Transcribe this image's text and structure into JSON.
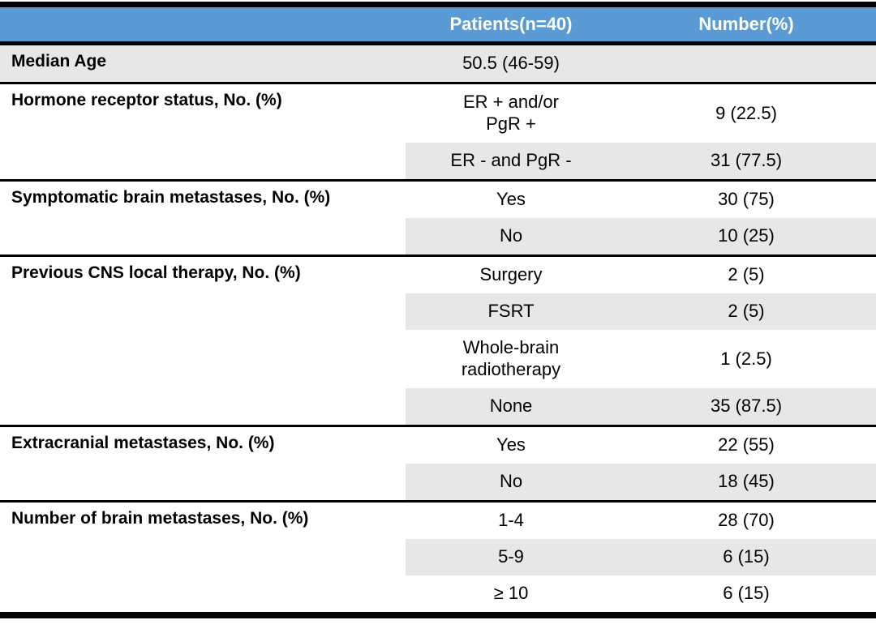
{
  "colors": {
    "header_bg": "#5B9BD5",
    "header_text": "#FFFFFF",
    "band_shade": "#E8E7E7",
    "rule": "#000000"
  },
  "header": {
    "patients": "Patients(n=40)",
    "number": "Number(%)"
  },
  "sections": [
    {
      "label": "Median Age",
      "rows": [
        {
          "value": "50.5 (46-59)",
          "number": ""
        }
      ]
    },
    {
      "label": "Hormone receptor status, No. (%)",
      "rows": [
        {
          "value": "ER + and/or\nPgR +",
          "number": "9 (22.5)"
        },
        {
          "value": "ER - and PgR -",
          "number": "31 (77.5)"
        }
      ]
    },
    {
      "label": "Symptomatic brain metastases, No. (%)",
      "rows": [
        {
          "value": "Yes",
          "number": "30 (75)"
        },
        {
          "value": "No",
          "number": "10 (25)"
        }
      ]
    },
    {
      "label": "Previous CNS local therapy, No. (%)",
      "rows": [
        {
          "value": "Surgery",
          "number": "2 (5)"
        },
        {
          "value": "FSRT",
          "number": "2 (5)"
        },
        {
          "value": "Whole-brain\nradiotherapy",
          "number": "1 (2.5)"
        },
        {
          "value": "None",
          "number": "35 (87.5)"
        }
      ]
    },
    {
      "label": "Extracranial metastases, No. (%)",
      "rows": [
        {
          "value": "Yes",
          "number": "22 (55)"
        },
        {
          "value": "No",
          "number": "18 (45)"
        }
      ]
    },
    {
      "label": "Number of brain metastases, No. (%)",
      "rows": [
        {
          "value": "1-4",
          "number": "28 (70)"
        },
        {
          "value": "5-9",
          "number": "6 (15)"
        },
        {
          "value": "≥ 10",
          "number": "6 (15)"
        }
      ]
    }
  ]
}
